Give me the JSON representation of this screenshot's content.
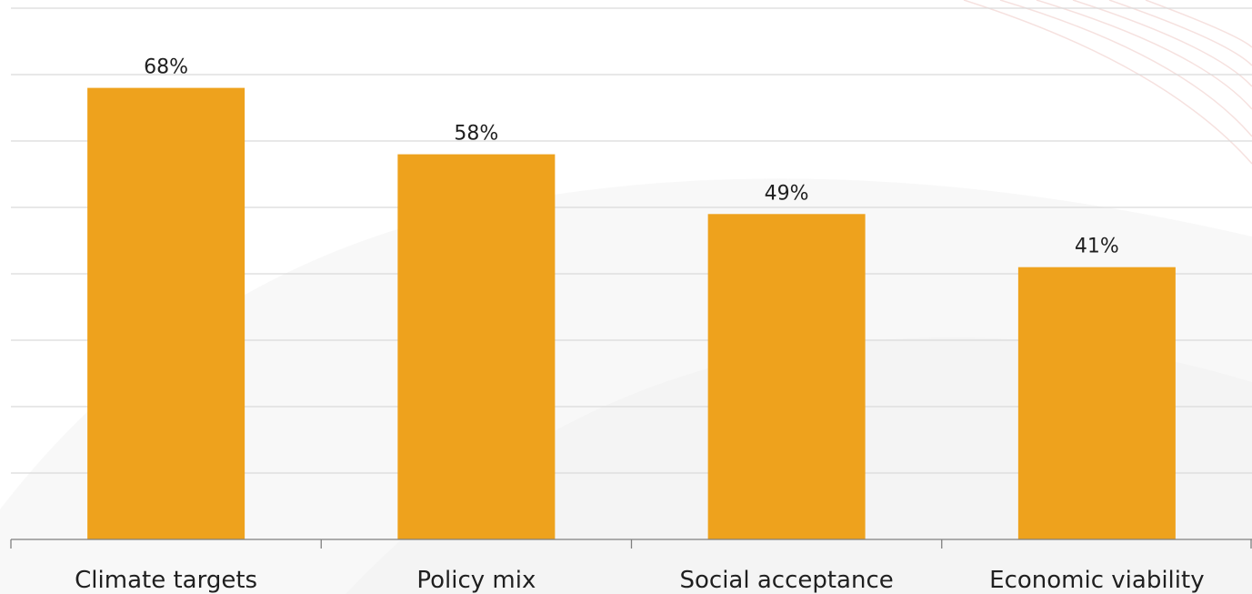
{
  "chart_data": {
    "type": "bar",
    "categories": [
      "Climate targets",
      "Policy mix",
      "Social acceptance",
      "Economic viability"
    ],
    "values": [
      68,
      58,
      49,
      41
    ],
    "value_labels": [
      "68%",
      "58%",
      "49%",
      "41%"
    ],
    "title": "",
    "xlabel": "",
    "ylabel": "",
    "ylim": [
      0,
      80
    ],
    "grid": true,
    "legend": "none",
    "bar_color": "#EEA21D",
    "grid_color": "#D9D9D9",
    "axis_color": "#7F7F7F"
  }
}
